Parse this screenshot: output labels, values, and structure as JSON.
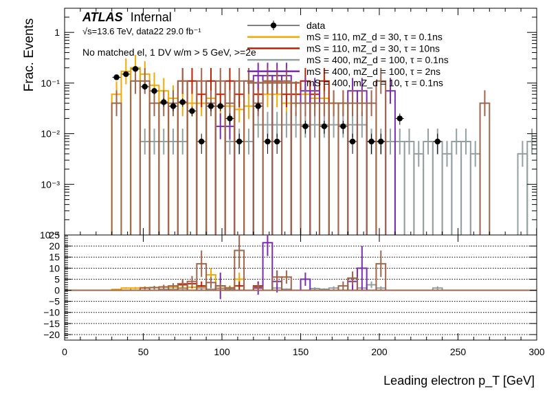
{
  "chart_data": [
    {
      "panel": "main",
      "type": "histogram",
      "title": "",
      "xlabel": "",
      "ylabel": "Frac. Events",
      "xlim": [
        0,
        300
      ],
      "ylim": [
        0.0001,
        3
      ],
      "yscale": "log",
      "y_ticks": [
        {
          "value": 1,
          "label": "1"
        },
        {
          "value": 0.1,
          "label": "10⁻¹"
        },
        {
          "value": 0.01,
          "label": "10⁻²"
        },
        {
          "value": 0.001,
          "label": "10⁻³"
        },
        {
          "value": 0.0001,
          "label": "10⁻⁴"
        }
      ],
      "bin_width": 6,
      "annotations": {
        "experiment": "ATLAS",
        "status": "Internal",
        "energy_lumi": "√s=13.6 TeV, data22 29.0 fb⁻¹",
        "selection": "No matched el, 1 DV w/m > 5 GeV, >=2e"
      },
      "legend_placement": "top-right",
      "data": {
        "name": "data",
        "color": "#000000",
        "points": [
          {
            "x": 33,
            "y": 0.13,
            "err": 0.015
          },
          {
            "x": 39,
            "y": 0.15,
            "err": 0.015
          },
          {
            "x": 45,
            "y": 0.19,
            "err": 0.02
          },
          {
            "x": 51,
            "y": 0.085,
            "err": 0.012
          },
          {
            "x": 57,
            "y": 0.07,
            "err": 0.01
          },
          {
            "x": 63,
            "y": 0.042,
            "err": 0.008
          },
          {
            "x": 69,
            "y": 0.035,
            "err": 0.007
          },
          {
            "x": 75,
            "y": 0.042,
            "err": 0.008
          },
          {
            "x": 81,
            "y": 0.028,
            "err": 0.006
          },
          {
            "x": 87,
            "y": 0.007,
            "err": 0.003
          },
          {
            "x": 93,
            "y": 0.035,
            "err": 0.007
          },
          {
            "x": 99,
            "y": 0.035,
            "err": 0.007
          },
          {
            "x": 105,
            "y": 0.02,
            "err": 0.005
          },
          {
            "x": 111,
            "y": 0.007,
            "err": 0.003
          },
          {
            "x": 123,
            "y": 0.035,
            "err": 0.007
          },
          {
            "x": 129,
            "y": 0.007,
            "err": 0.003
          },
          {
            "x": 135,
            "y": 0.007,
            "err": 0.003
          },
          {
            "x": 153,
            "y": 0.014,
            "err": 0.004
          },
          {
            "x": 165,
            "y": 0.014,
            "err": 0.004
          },
          {
            "x": 177,
            "y": 0.014,
            "err": 0.004
          },
          {
            "x": 183,
            "y": 0.007,
            "err": 0.003
          },
          {
            "x": 195,
            "y": 0.007,
            "err": 0.003
          },
          {
            "x": 201,
            "y": 0.007,
            "err": 0.003
          },
          {
            "x": 213,
            "y": 0.02,
            "err": 0.005
          },
          {
            "x": 237,
            "y": 0.007,
            "err": 0.003
          }
        ]
      },
      "series": [
        {
          "name": "mS = 110, mZ_d = 30, τ = 0.1ns",
          "color": "#f5a800",
          "bins": [
            [
              30,
              0.06
            ],
            [
              36,
              0.17
            ],
            [
              42,
              0.2
            ],
            [
              48,
              0.15
            ],
            [
              54,
              0.09
            ],
            [
              60,
              0.07
            ],
            [
              66,
              0.05
            ],
            [
              72,
              0.04
            ],
            [
              78,
              0.04
            ],
            [
              84,
              0.04
            ],
            [
              90,
              0.05
            ],
            [
              96,
              0.035
            ],
            [
              102,
              0.035
            ],
            [
              108,
              0.03
            ],
            [
              114,
              0.035
            ],
            [
              120,
              0.06
            ],
            [
              126,
              0.06
            ],
            [
              132,
              0.06
            ],
            [
              138,
              0.04
            ],
            [
              144,
              0.06
            ],
            [
              150,
              0.06
            ],
            [
              156,
              0.05
            ],
            [
              162,
              0.05
            ],
            [
              168,
              0.04
            ],
            [
              174,
              0.04
            ]
          ]
        },
        {
          "name": "mS = 110, mZ_d = 30, τ = 10ns",
          "color": "#bf1f00",
          "bins": [
            [
              72,
              0.11
            ],
            [
              78,
              0.11
            ],
            [
              84,
              0.06
            ],
            [
              90,
              0.11
            ],
            [
              96,
              0.06
            ],
            [
              102,
              0.11
            ],
            [
              108,
              0.06
            ],
            [
              114,
              0.11
            ],
            [
              120,
              0.06
            ],
            [
              126,
              0.11
            ],
            [
              132,
              0.11
            ],
            [
              138,
              0.06
            ],
            [
              144,
              0.06
            ],
            [
              150,
              0.11
            ],
            [
              156,
              0.06
            ],
            [
              162,
              0.11
            ]
          ]
        },
        {
          "name": "mS = 400, mZ_d = 100, τ = 0.1ns",
          "color": "#92a0a0",
          "bins": [
            [
              48,
              0.007
            ],
            [
              54,
              0.007
            ],
            [
              60,
              0.007
            ],
            [
              66,
              0.007
            ],
            [
              72,
              0.007
            ],
            [
              102,
              0.007
            ],
            [
              108,
              0.007
            ],
            [
              114,
              0.007
            ],
            [
              120,
              0.015
            ],
            [
              126,
              0.015
            ],
            [
              132,
              0.015
            ],
            [
              138,
              0.015
            ],
            [
              144,
              0.015
            ],
            [
              150,
              0.015
            ],
            [
              156,
              0.015
            ],
            [
              162,
              0.015
            ],
            [
              168,
              0.015
            ],
            [
              174,
              0.015
            ],
            [
              180,
              0.015
            ],
            [
              186,
              0.015
            ],
            [
              192,
              0.007
            ],
            [
              198,
              0.007
            ],
            [
              204,
              0.007
            ],
            [
              210,
              0.007
            ],
            [
              216,
              0.007
            ],
            [
              222,
              0.004
            ],
            [
              228,
              0.007
            ],
            [
              234,
              0.007
            ],
            [
              240,
              0.004
            ],
            [
              246,
              0.007
            ],
            [
              252,
              0.007
            ],
            [
              258,
              0.004
            ],
            [
              288,
              0.004
            ],
            [
              294,
              0.007
            ]
          ]
        },
        {
          "name": "mS = 400, mZ_d = 100, τ = 2ns",
          "color": "#7b2bb5",
          "bins": [
            [
              96,
              0.014
            ],
            [
              102,
              0.014
            ],
            [
              120,
              0.14
            ],
            [
              126,
              0.14
            ],
            [
              132,
              0.14
            ],
            [
              138,
              0.14
            ],
            [
              150,
              0.07
            ],
            [
              156,
              0.07
            ],
            [
              180,
              0.07
            ],
            [
              186,
              0.07
            ],
            [
              204,
              0.07
            ]
          ]
        },
        {
          "name": "mS = 400, mZ_d = 10, τ = 0.1ns",
          "color": "#a0654b",
          "bins": [
            [
              30,
              0.04
            ],
            [
              42,
              0.11
            ],
            [
              48,
              0.11
            ],
            [
              54,
              0.04
            ],
            [
              60,
              0.04
            ],
            [
              66,
              0.04
            ],
            [
              72,
              0.11
            ],
            [
              84,
              0.11
            ],
            [
              90,
              0.04
            ],
            [
              96,
              0.11
            ],
            [
              102,
              0.04
            ],
            [
              108,
              0.11
            ],
            [
              114,
              0.11
            ],
            [
              120,
              0.04
            ],
            [
              126,
              0.11
            ],
            [
              132,
              0.11
            ],
            [
              138,
              0.11
            ],
            [
              144,
              0.04
            ],
            [
              150,
              0.04
            ],
            [
              156,
              0.04
            ],
            [
              162,
              0.04
            ],
            [
              168,
              0.04
            ],
            [
              174,
              0.04
            ],
            [
              180,
              0.04
            ],
            [
              186,
              0.04
            ],
            [
              192,
              0.04
            ],
            [
              198,
              0.11
            ],
            [
              264,
              0.04
            ]
          ]
        }
      ]
    },
    {
      "panel": "ratio",
      "type": "histogram",
      "xlabel": "Leading electron p_T [GeV]",
      "ylabel": "",
      "xlim": [
        0,
        300
      ],
      "ylim": [
        -22.5,
        25
      ],
      "y_ticks": [
        {
          "value": 25,
          "label": "25"
        },
        {
          "value": 20,
          "label": "20"
        },
        {
          "value": 15,
          "label": "15"
        },
        {
          "value": 10,
          "label": "10"
        },
        {
          "value": 5,
          "label": "5"
        },
        {
          "value": 0,
          "label": "0"
        },
        {
          "value": -5,
          "label": "−5"
        },
        {
          "value": -10,
          "label": "−10"
        },
        {
          "value": -15,
          "label": "−15"
        },
        {
          "value": -20,
          "label": "−20"
        }
      ],
      "x_ticks": [
        {
          "value": 0,
          "label": "0"
        },
        {
          "value": 50,
          "label": "50"
        },
        {
          "value": 100,
          "label": "100"
        },
        {
          "value": 150,
          "label": "150"
        },
        {
          "value": 200,
          "label": "200"
        },
        {
          "value": 250,
          "label": "250"
        },
        {
          "value": 300,
          "label": "300"
        }
      ],
      "grid_lines": [
        20,
        15,
        10,
        5,
        0,
        -5,
        -10,
        -15,
        -20
      ],
      "series": [
        {
          "name": "mS = 110, mZ_d = 30, τ = 0.1ns",
          "color": "#f5a800",
          "bins": [
            [
              30,
              0.4,
              0.3
            ],
            [
              36,
              1.0,
              0.4
            ],
            [
              42,
              1.0,
              0.5
            ],
            [
              48,
              1.2,
              0.6
            ],
            [
              54,
              1.3,
              0.6
            ],
            [
              60,
              1.6,
              0.7
            ],
            [
              66,
              1.4,
              0.8
            ],
            [
              72,
              1.2,
              0.8
            ],
            [
              78,
              1.4,
              0.8
            ],
            [
              84,
              1.4,
              1.0
            ],
            [
              90,
              7.0,
              3.0
            ],
            [
              96,
              1.0,
              0.8
            ],
            [
              102,
              1.2,
              1.0
            ],
            [
              108,
              5.0,
              3.0
            ]
          ]
        },
        {
          "name": "mS = 110, mZ_d = 30, τ = 10ns",
          "color": "#bf1f00",
          "bins": [
            [
              72,
              2.5,
              2.0
            ],
            [
              78,
              3.0,
              2.0
            ],
            [
              84,
              2.0,
              2.0
            ],
            [
              108,
              2.0,
              2.0
            ],
            [
              120,
              2.0,
              2.0
            ]
          ]
        },
        {
          "name": "mS = 400, mZ_d = 100, τ = 0.1ns",
          "color": "#92a0a0",
          "bins": [
            [
              60,
              0.5,
              0.4
            ],
            [
              66,
              0.5,
              0.4
            ],
            [
              72,
              0.8,
              0.5
            ],
            [
              84,
              1.0,
              0.6
            ],
            [
              90,
              0.5,
              0.4
            ],
            [
              96,
              0.8,
              0.5
            ],
            [
              102,
              0.5,
              0.4
            ],
            [
              132,
              1.0,
              0.8
            ],
            [
              138,
              0.5,
              0.4
            ],
            [
              156,
              0.8,
              0.6
            ],
            [
              162,
              0.5,
              0.4
            ],
            [
              168,
              1.0,
              0.8
            ],
            [
              186,
              1.0,
              0.8
            ],
            [
              192,
              2.5,
              1.5
            ],
            [
              198,
              1.0,
              0.8
            ],
            [
              234,
              1.0,
              0.8
            ]
          ]
        },
        {
          "name": "mS = 400, mZ_d = 100, τ = 2ns",
          "color": "#7b2bb5",
          "bins": [
            [
              96,
              2.0,
              6.0
            ],
            [
              120,
              1.0,
              3.0
            ],
            [
              126,
              21.5,
              6.0
            ],
            [
              132,
              4.0,
              5.0
            ],
            [
              150,
              5.0,
              3.0
            ],
            [
              180,
              4.0,
              4.0
            ],
            [
              186,
              10.0,
              10.0
            ]
          ]
        },
        {
          "name": "mS = 400, mZ_d = 10, τ = 0.1ns",
          "color": "#a0654b",
          "bins": [
            [
              48,
              1.0,
              0.6
            ],
            [
              54,
              1.2,
              0.8
            ],
            [
              60,
              1.5,
              1.0
            ],
            [
              66,
              2.0,
              1.2
            ],
            [
              72,
              3.0,
              2.0
            ],
            [
              78,
              4.0,
              2.5
            ],
            [
              84,
              12.0,
              6.0
            ],
            [
              90,
              3.5,
              2.5
            ],
            [
              96,
              2.0,
              1.5
            ],
            [
              102,
              1.0,
              1.0
            ],
            [
              108,
              18.0,
              8.0
            ],
            [
              120,
              1.5,
              1.5
            ],
            [
              132,
              6.0,
              3.0
            ],
            [
              138,
              6.0,
              3.0
            ],
            [
              174,
              2.0,
              2.0
            ],
            [
              180,
              5.5,
              3.0
            ],
            [
              198,
              12.0,
              6.0
            ]
          ]
        }
      ]
    }
  ]
}
